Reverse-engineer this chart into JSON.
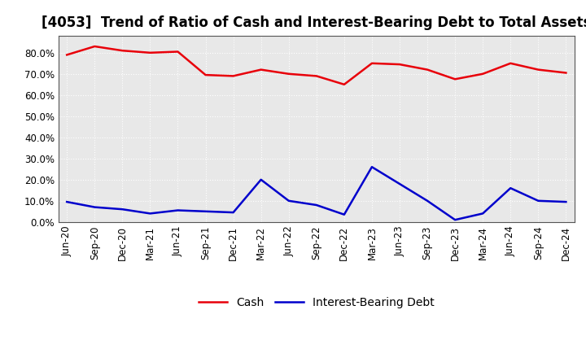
{
  "title": "[4053]  Trend of Ratio of Cash and Interest-Bearing Debt to Total Assets",
  "x_labels": [
    "Jun-20",
    "Sep-20",
    "Dec-20",
    "Mar-21",
    "Jun-21",
    "Sep-21",
    "Dec-21",
    "Mar-22",
    "Jun-22",
    "Sep-22",
    "Dec-22",
    "Mar-23",
    "Jun-23",
    "Sep-23",
    "Dec-23",
    "Mar-24",
    "Jun-24",
    "Sep-24",
    "Dec-24"
  ],
  "cash": [
    79.0,
    83.0,
    81.0,
    80.0,
    80.5,
    69.5,
    69.0,
    72.0,
    70.0,
    69.0,
    65.0,
    75.0,
    74.5,
    72.0,
    67.5,
    70.0,
    75.0,
    72.0,
    70.5
  ],
  "ibd": [
    9.5,
    7.0,
    6.0,
    4.0,
    5.5,
    5.0,
    4.5,
    20.0,
    10.0,
    8.0,
    3.5,
    26.0,
    18.0,
    10.0,
    1.0,
    4.0,
    16.0,
    10.0,
    9.5
  ],
  "cash_color": "#e8000a",
  "ibd_color": "#0000cc",
  "ylim": [
    0,
    88
  ],
  "yticks": [
    0.0,
    10.0,
    20.0,
    30.0,
    40.0,
    50.0,
    60.0,
    70.0,
    80.0
  ],
  "plot_bg_color": "#e8e8e8",
  "fig_bg_color": "#ffffff",
  "grid_color": "#ffffff",
  "title_fontsize": 12,
  "axis_fontsize": 8.5,
  "legend_fontsize": 10
}
